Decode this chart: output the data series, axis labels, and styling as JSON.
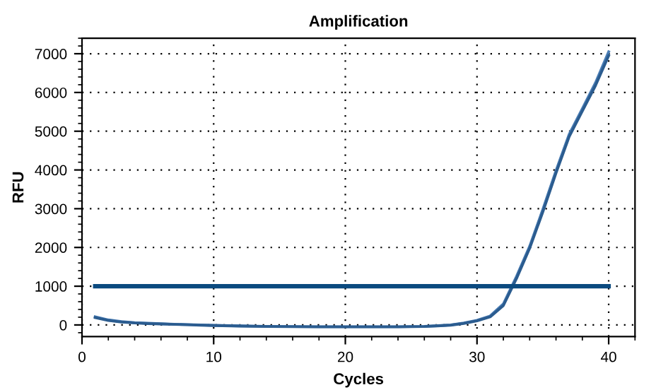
{
  "chart_data": {
    "type": "line",
    "title": "Amplification",
    "xlabel": "Cycles",
    "ylabel": "RFU",
    "xlim": [
      0,
      42
    ],
    "xticks": [
      0,
      10,
      20,
      30,
      40
    ],
    "ylim": [
      -300,
      7400
    ],
    "yticks": [
      0,
      1000,
      2000,
      3000,
      4000,
      5000,
      6000,
      7000
    ],
    "grid": true,
    "marker": "none",
    "line_style": "solid",
    "series": [
      {
        "color": "#4a7db5",
        "x": [
          1,
          2,
          3,
          4,
          5,
          6,
          7,
          8,
          9,
          10,
          12,
          14,
          16,
          18,
          20,
          22,
          24,
          26,
          27,
          28,
          29,
          30,
          31,
          32,
          33,
          34,
          35,
          36,
          37,
          38,
          39,
          40
        ],
        "values": [
          210,
          130,
          85,
          60,
          45,
          30,
          20,
          10,
          0,
          -10,
          -25,
          -35,
          -40,
          -45,
          -45,
          -45,
          -45,
          -35,
          -20,
          0,
          50,
          120,
          230,
          540,
          1250,
          2030,
          2980,
          3980,
          4920,
          5580,
          6250,
          7050
        ]
      },
      {
        "color": "#2b5c8f",
        "x": [
          1,
          2,
          3,
          4,
          5,
          6,
          7,
          8,
          9,
          10,
          12,
          14,
          16,
          18,
          20,
          22,
          24,
          26,
          27,
          28,
          29,
          30,
          31,
          32,
          33,
          34,
          35,
          36,
          37,
          38,
          39,
          40
        ],
        "values": [
          190,
          115,
          75,
          50,
          35,
          25,
          15,
          5,
          -5,
          -15,
          -30,
          -40,
          -45,
          -50,
          -50,
          -50,
          -50,
          -40,
          -25,
          -5,
          40,
          105,
          210,
          500,
          1200,
          1980,
          2920,
          3920,
          4860,
          5520,
          6180,
          6950
        ]
      },
      {
        "color": "#0b4a7f",
        "x": [
          1,
          40
        ],
        "values": [
          1000,
          1000
        ]
      }
    ]
  }
}
